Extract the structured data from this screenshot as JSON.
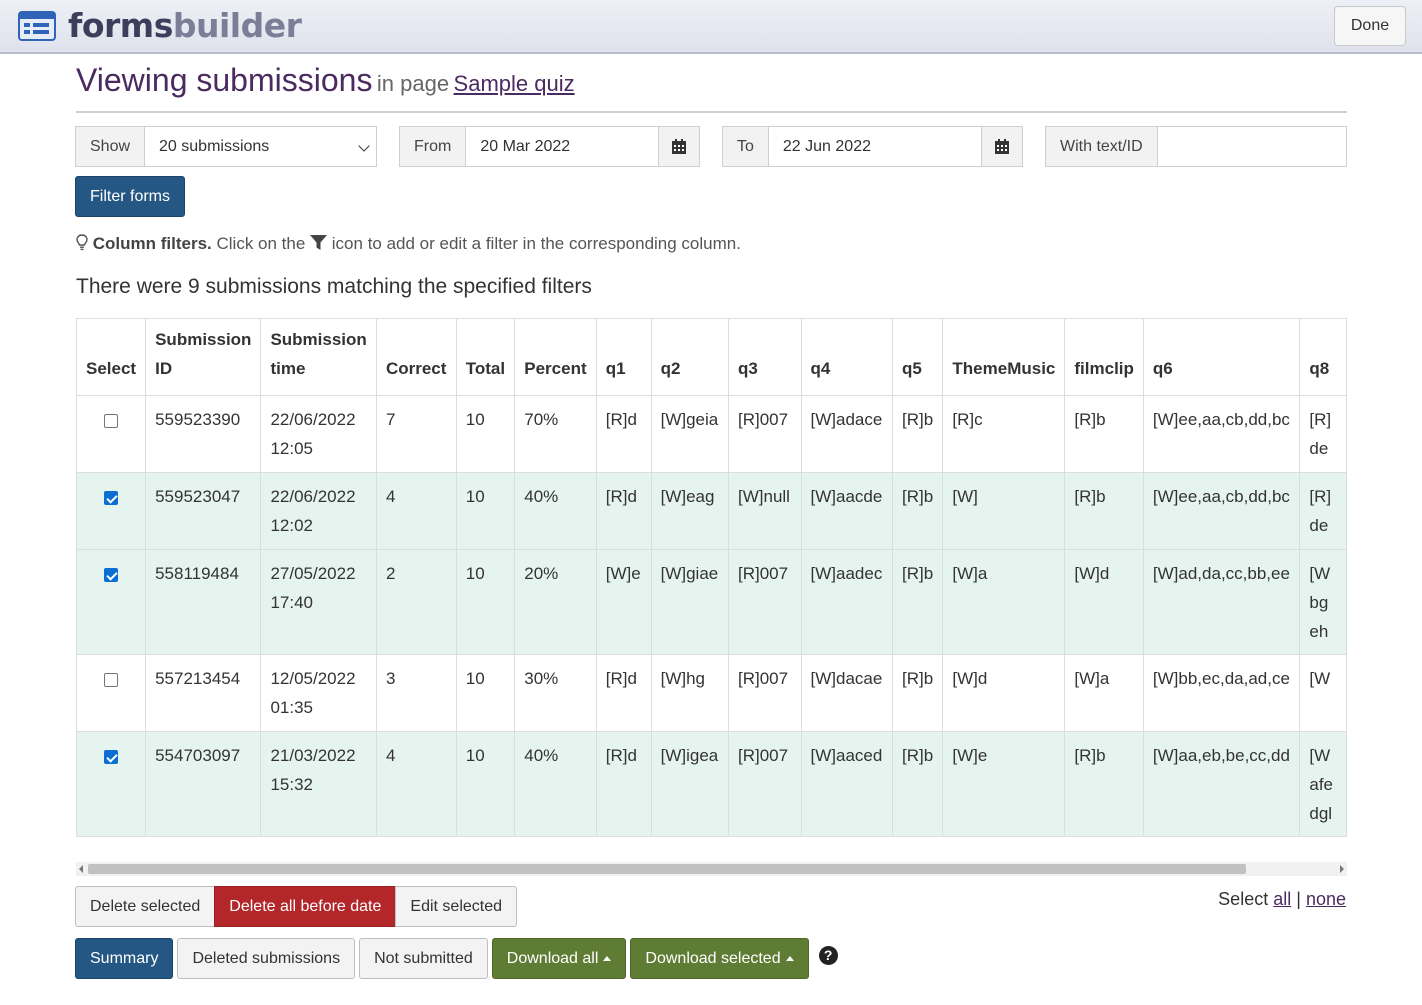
{
  "header": {
    "logo_part1": "forms",
    "logo_part2": "builder",
    "done_label": "Done"
  },
  "page": {
    "title": "Viewing submissions",
    "in_page": "in page",
    "page_link": "Sample quiz"
  },
  "filters": {
    "show_label": "Show",
    "show_value": "20 submissions",
    "from_label": "From",
    "from_value": "20 Mar 2022",
    "to_label": "To",
    "to_value": "22 Jun 2022",
    "text_label": "With text/ID",
    "text_value": "",
    "filter_button": "Filter forms"
  },
  "tip": {
    "bold": "Column filters.",
    "before_icon": "Click on the",
    "after_icon": "icon to add or edit a filter in the corresponding column."
  },
  "result_count": "There were 9 submissions matching the specified filters",
  "table": {
    "headers": [
      "Select",
      "Submission ID",
      "Submission time",
      "Correct",
      "Total",
      "Percent",
      "q1",
      "q2",
      "q3",
      "q4",
      "q5",
      "ThemeMusic",
      "filmclip",
      "q6",
      "q8"
    ],
    "rows": [
      {
        "checked": false,
        "id": "559523390",
        "time1": "22/06/2022",
        "time2": "12:05",
        "correct": "7",
        "total": "10",
        "percent": "70%",
        "q1": "[R]d",
        "q2": "[W]geia",
        "q3": "[R]007",
        "q4": "[W]adace",
        "q5": "[R]b",
        "theme": "[R]c",
        "film": "[R]b",
        "q6": "[W]ee,aa,cb,dd,bc",
        "q8a": "[R]",
        "q8b": "de",
        "q8c": ""
      },
      {
        "checked": true,
        "id": "559523047",
        "time1": "22/06/2022",
        "time2": "12:02",
        "correct": "4",
        "total": "10",
        "percent": "40%",
        "q1": "[R]d",
        "q2": "[W]eag",
        "q3": "[W]null",
        "q4": "[W]aacde",
        "q5": "[R]b",
        "theme": "[W]",
        "film": "[R]b",
        "q6": "[W]ee,aa,cb,dd,bc",
        "q8a": "[R]",
        "q8b": "de",
        "q8c": ""
      },
      {
        "checked": true,
        "id": "558119484",
        "time1": "27/05/2022",
        "time2": "17:40",
        "correct": "2",
        "total": "10",
        "percent": "20%",
        "q1": "[W]e",
        "q2": "[W]giae",
        "q3": "[R]007",
        "q4": "[W]aadec",
        "q5": "[R]b",
        "theme": "[W]a",
        "film": "[W]d",
        "q6": "[W]ad,da,cc,bb,ee",
        "q8a": "[W",
        "q8b": "bg",
        "q8c": "eh"
      },
      {
        "checked": false,
        "id": "557213454",
        "time1": "12/05/2022",
        "time2": "01:35",
        "correct": "3",
        "total": "10",
        "percent": "30%",
        "q1": "[R]d",
        "q2": "[W]hg",
        "q3": "[R]007",
        "q4": "[W]dacae",
        "q5": "[R]b",
        "theme": "[W]d",
        "film": "[W]a",
        "q6": "[W]bb,ec,da,ad,ce",
        "q8a": "[W",
        "q8b": "",
        "q8c": ""
      },
      {
        "checked": true,
        "id": "554703097",
        "time1": "21/03/2022",
        "time2": "15:32",
        "correct": "4",
        "total": "10",
        "percent": "40%",
        "q1": "[R]d",
        "q2": "[W]igea",
        "q3": "[R]007",
        "q4": "[W]aaced",
        "q5": "[R]b",
        "theme": "[W]e",
        "film": "[R]b",
        "q6": "[W]aa,eb,be,cc,dd",
        "q8a": "[W",
        "q8b": "afe",
        "q8c": "dgl"
      }
    ]
  },
  "row_actions": {
    "delete_selected": "Delete selected",
    "delete_before": "Delete all before date",
    "edit_selected": "Edit selected"
  },
  "select_links": {
    "label": "Select",
    "all": "all",
    "separator": "|",
    "none": "none"
  },
  "bottom_actions": {
    "summary": "Summary",
    "deleted": "Deleted submissions",
    "not_submitted": "Not submitted",
    "download_all": "Download all",
    "download_selected": "Download selected",
    "help": "?"
  },
  "colors": {
    "primary": "#245784",
    "danger": "#b3262a",
    "success": "#5e7c33",
    "title": "#4a2a5f",
    "selected_row": "#e6f4ef"
  },
  "icons": [
    "form-logo-icon",
    "calendar-icon",
    "lightbulb-icon",
    "funnel-icon",
    "question-circle-icon"
  ]
}
